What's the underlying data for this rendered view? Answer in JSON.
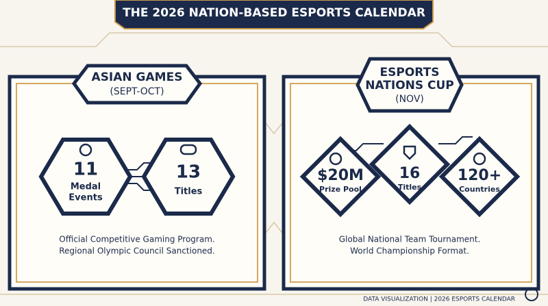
{
  "header": {
    "title": "THE 2026 NATION-BASED ESPORTS CALENDAR"
  },
  "panels": [
    {
      "title": [
        "ASIAN GAMES"
      ],
      "subtitle": "(SEPT-OCT)",
      "stats": [
        {
          "value": "11",
          "label": [
            "Medal",
            "Events"
          ]
        },
        {
          "value": "13",
          "label": [
            "Titles"
          ]
        }
      ],
      "description": [
        "Official Competitive Gaming Program.",
        "Regional Olympic Council Sanctioned."
      ]
    },
    {
      "title": [
        "ESPORTS",
        "NATIONS CUP"
      ],
      "subtitle": "(NOV)",
      "stats": [
        {
          "value": "$20M",
          "label": [
            "Prize Pool"
          ]
        },
        {
          "value": "16",
          "label": [
            "Titles"
          ]
        },
        {
          "value": "120+",
          "label": [
            "Countries"
          ]
        }
      ],
      "description": [
        "Global National Team Tournament.",
        "World Championship Format."
      ]
    }
  ],
  "footer": {
    "text": "DATA VISUALIZATION | 2026 ESPORTS CALENDAR"
  }
}
